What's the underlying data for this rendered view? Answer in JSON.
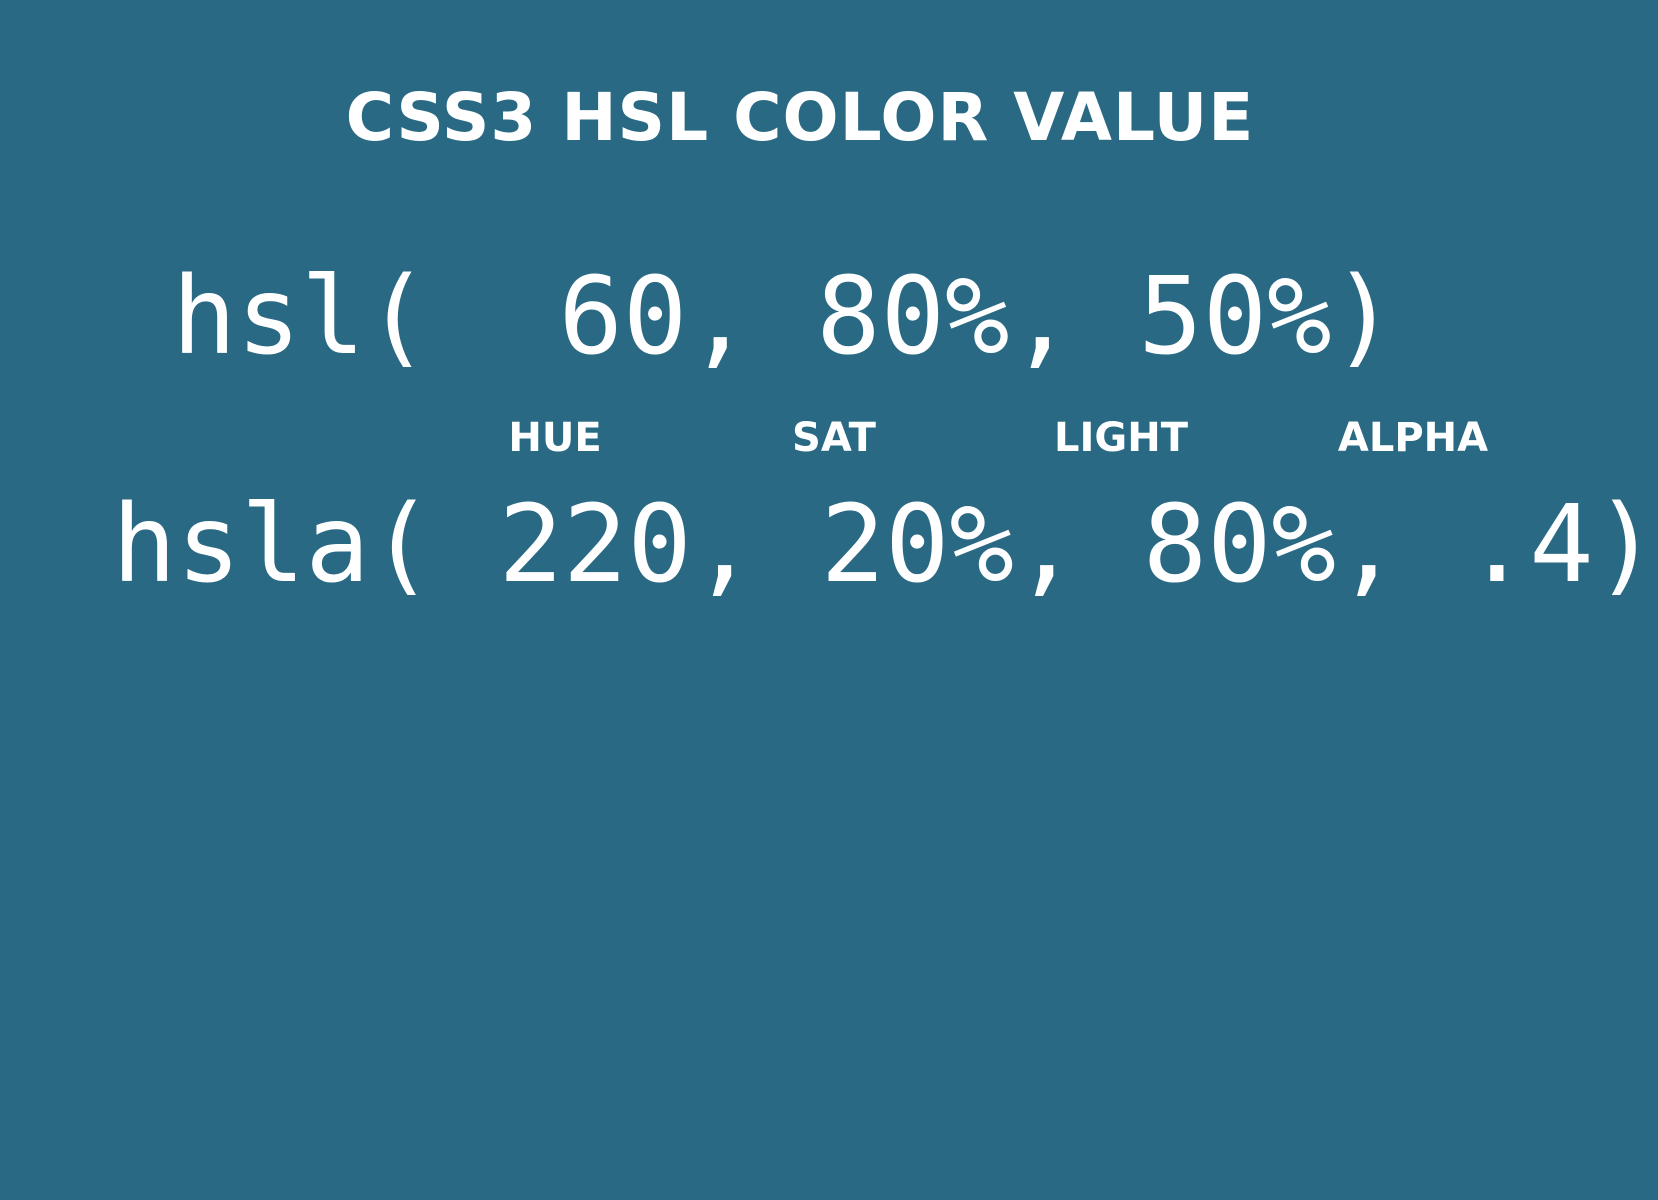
{
  "colors": {
    "background": "#296984",
    "text": "#ffffff"
  },
  "slide": {
    "title": "CSS3 HSL COLOR VALUE",
    "code_hsl": "hsl(  60, 80%, 50%)",
    "labels": {
      "hue": "HUE",
      "sat": "SAT",
      "light": "LIGHT",
      "alpha": "ALPHA"
    },
    "code_hsla": "hsla( 220, 20%, 80%, .4)"
  }
}
